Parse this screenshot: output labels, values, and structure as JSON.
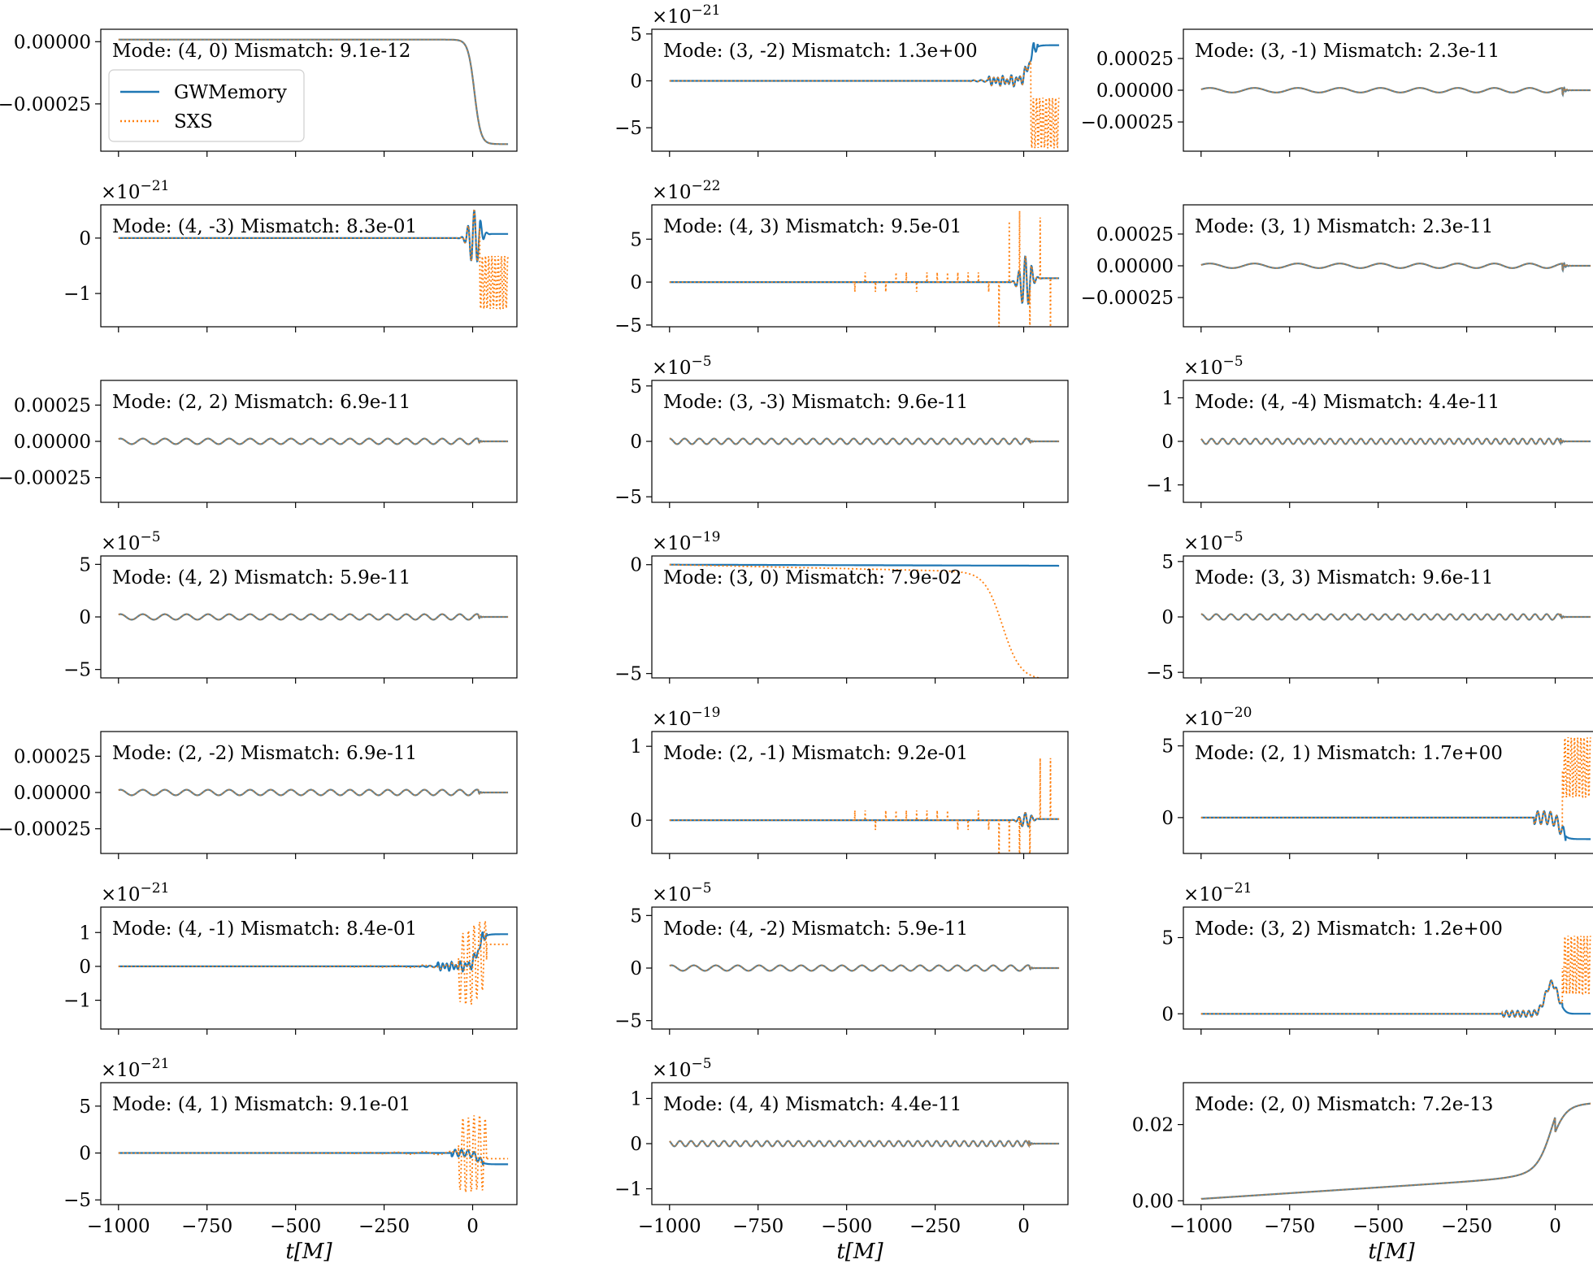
{
  "chart_data": {
    "type": "line",
    "layout": {
      "rows": 7,
      "cols": 3
    },
    "x_domain": [
      -1000,
      100
    ],
    "x_ticks": [
      -1000,
      -750,
      -500,
      -250,
      0
    ],
    "x_tick_labels": [
      "−1000",
      "−750",
      "−500",
      "−250",
      "0"
    ],
    "xlabel": "t[M]",
    "legend": {
      "placement": "upper-left",
      "panel": 0,
      "entries": [
        {
          "name": "GWMemory",
          "style": "solid",
          "color": "#1f77b4"
        },
        {
          "name": "SXS",
          "style": "dotted",
          "color": "#ff7f0e"
        }
      ]
    },
    "series_colors": {
      "GWMemory": "#1f77b4",
      "SXS": "#ff7f0e",
      "overlap": "#5f7f8f"
    },
    "panels": [
      {
        "label": "Mode: (4, 0)   Mismatch: 9.1e-12",
        "mult": "",
        "yrange": [
          -0.00044,
          5e-05
        ],
        "yticks": [
          0,
          -0.00025
        ],
        "yticklabels": [
          "0.00000",
          "−0.00025"
        ],
        "kind": "step_down",
        "amp": 0.00042,
        "sxs_diff": "none"
      },
      {
        "label": "Mode: (3, -2)   Mismatch: 1.3e+00",
        "mult": "×10−21",
        "yrange": [
          -7.5,
          5.5
        ],
        "yticks": [
          5,
          0,
          -5
        ],
        "yticklabels": [
          "5",
          "0",
          "−5"
        ],
        "kind": "memory_jump",
        "amp": 3.8,
        "sxs_diff": "noisy_block",
        "sxs_level": -4.5
      },
      {
        "label": "Mode: (3, -1)   Mismatch: 2.3e-11",
        "mult": "",
        "yrange": [
          -0.00048,
          0.00048
        ],
        "yticks": [
          0.00025,
          0,
          -0.00025
        ],
        "yticklabels": [
          "0.00025",
          "0.00000",
          "−0.00025"
        ],
        "kind": "slow_chirp",
        "amp": 0.00045,
        "sxs_diff": "none"
      },
      {
        "label": "Mode: (4, -3)   Mismatch: 8.3e-01",
        "mult": "×10−21",
        "yrange": [
          -1.6,
          0.6
        ],
        "yticks": [
          0,
          -1
        ],
        "yticklabels": [
          "0",
          "−1"
        ],
        "kind": "burst_small",
        "amp": 0.5,
        "sxs_diff": "noisy_block",
        "sxs_level": -0.8
      },
      {
        "label": "Mode: (4, 3)   Mismatch: 9.5e-01",
        "mult": "×10−22",
        "yrange": [
          -5.2,
          9
        ],
        "yticks": [
          5,
          0,
          -5
        ],
        "yticklabels": [
          "5",
          "0",
          "−5"
        ],
        "kind": "burst_small",
        "amp": 3,
        "sxs_diff": "spikes"
      },
      {
        "label": "Mode: (3, 1)   Mismatch: 2.3e-11",
        "mult": "",
        "yrange": [
          -0.00048,
          0.00048
        ],
        "yticks": [
          0.00025,
          0,
          -0.00025
        ],
        "yticklabels": [
          "0.00025",
          "0.00000",
          "−0.00025"
        ],
        "kind": "slow_chirp",
        "amp": 0.00045,
        "sxs_diff": "none"
      },
      {
        "label": "Mode: (2, 2)   Mismatch: 6.9e-11",
        "mult": "",
        "yrange": [
          -0.00042,
          0.00042
        ],
        "yticks": [
          0.00025,
          0,
          -0.00025
        ],
        "yticklabels": [
          "0.00025",
          "0.00000",
          "−0.00025"
        ],
        "kind": "chirp",
        "cycles": 22,
        "amp": 0.00038,
        "sxs_diff": "none"
      },
      {
        "label": "Mode: (3, -3)   Mismatch: 9.6e-11",
        "mult": "×10−5",
        "yrange": [
          -5.5,
          5.5
        ],
        "yticks": [
          5,
          0,
          -5
        ],
        "yticklabels": [
          "5",
          "0",
          "−5"
        ],
        "kind": "chirp",
        "cycles": 33,
        "amp": 5,
        "sxs_diff": "none"
      },
      {
        "label": "Mode: (4, -4)   Mismatch: 4.4e-11",
        "mult": "×10−5",
        "yrange": [
          -1.4,
          1.4
        ],
        "yticks": [
          1,
          0,
          -1
        ],
        "yticklabels": [
          "1",
          "0",
          "−1"
        ],
        "kind": "chirp",
        "cycles": 44,
        "amp": 1.25,
        "sxs_diff": "none"
      },
      {
        "label": "Mode: (4, 2)   Mismatch: 5.9e-11",
        "mult": "×10−5",
        "yrange": [
          -5.8,
          5.8
        ],
        "yticks": [
          5,
          0,
          -5
        ],
        "yticklabels": [
          "5",
          "0",
          "−5"
        ],
        "kind": "chirp",
        "cycles": 22,
        "amp": 5.2,
        "sxs_diff": "none"
      },
      {
        "label": "Mode: (3, 0)   Mismatch: 7.9e-02",
        "mult": "×10−19",
        "yrange": [
          -5.2,
          0.4
        ],
        "yticks": [
          0,
          -5
        ],
        "yticklabels": [
          "0",
          "−5"
        ],
        "kind": "flat_decline",
        "amp": 0.05,
        "sxs_diff": "decline",
        "sxs_level": -4.9
      },
      {
        "label": "Mode: (3, 3)   Mismatch: 9.6e-11",
        "mult": "×10−5",
        "yrange": [
          -5.5,
          5.5
        ],
        "yticks": [
          5,
          0,
          -5
        ],
        "yticklabels": [
          "5",
          "0",
          "−5"
        ],
        "kind": "chirp",
        "cycles": 33,
        "amp": 5,
        "sxs_diff": "none"
      },
      {
        "label": "Mode: (2, -2)   Mismatch: 6.9e-11",
        "mult": "",
        "yrange": [
          -0.00042,
          0.00042
        ],
        "yticks": [
          0.00025,
          0,
          -0.00025
        ],
        "yticklabels": [
          "0.00025",
          "0.00000",
          "−0.00025"
        ],
        "kind": "chirp",
        "cycles": 22,
        "amp": 0.00038,
        "sxs_diff": "none"
      },
      {
        "label": "Mode: (2, -1)   Mismatch: 9.2e-01",
        "mult": "×10−19",
        "yrange": [
          -0.45,
          1.2
        ],
        "yticks": [
          1,
          0
        ],
        "yticklabels": [
          "1",
          "0"
        ],
        "kind": "burst_small",
        "amp": 0.1,
        "sxs_diff": "spikes"
      },
      {
        "label": "Mode: (2, 1)   Mismatch: 1.7e+00",
        "mult": "×10−20",
        "yrange": [
          -2.5,
          6
        ],
        "yticks": [
          5,
          0
        ],
        "yticklabels": [
          "5",
          "0"
        ],
        "kind": "memory_drop",
        "amp": -1.5,
        "sxs_diff": "noisy_block",
        "sxs_level": 3.5
      },
      {
        "label": "Mode: (4, -1)   Mismatch: 8.4e-01",
        "mult": "×10−21",
        "yrange": [
          -1.85,
          1.75
        ],
        "yticks": [
          1,
          0,
          -1
        ],
        "yticklabels": [
          "1",
          "0",
          "−1"
        ],
        "kind": "memory_jump",
        "amp": 0.95,
        "sxs_diff": "oscillate_late",
        "sxs_level": 0.65
      },
      {
        "label": "Mode: (4, -2)   Mismatch: 5.9e-11",
        "mult": "×10−5",
        "yrange": [
          -5.8,
          5.8
        ],
        "yticks": [
          5,
          0,
          -5
        ],
        "yticklabels": [
          "5",
          "0",
          "−5"
        ],
        "kind": "chirp",
        "cycles": 22,
        "amp": 5.2,
        "sxs_diff": "none"
      },
      {
        "label": "Mode: (3, 2)   Mismatch: 1.2e+00",
        "mult": "×10−21",
        "yrange": [
          -1,
          7
        ],
        "yticks": [
          5,
          0
        ],
        "yticklabels": [
          "5",
          "0"
        ],
        "kind": "memory_bump",
        "amp": 2,
        "sxs_diff": "noisy_block",
        "sxs_level": 3.2
      },
      {
        "label": "Mode: (4, 1)   Mismatch: 9.1e-01",
        "mult": "×10−21",
        "yrange": [
          -5.5,
          7.5
        ],
        "yticks": [
          5,
          0,
          -5
        ],
        "yticklabels": [
          "5",
          "0",
          "−5"
        ],
        "kind": "memory_drop",
        "amp": -1.2,
        "sxs_diff": "oscillate_late",
        "sxs_level": -0.6
      },
      {
        "label": "Mode: (4, 4)   Mismatch: 4.4e-11",
        "mult": "×10−5",
        "yrange": [
          -1.35,
          1.35
        ],
        "yticks": [
          1,
          0,
          -1
        ],
        "yticklabels": [
          "1",
          "0",
          "−1"
        ],
        "kind": "chirp",
        "cycles": 44,
        "amp": 1.2,
        "sxs_diff": "none"
      },
      {
        "label": "Mode: (2, 0)   Mismatch: 7.2e-13",
        "mult": "",
        "yrange": [
          -0.001,
          0.031
        ],
        "yticks": [
          0.02,
          0
        ],
        "yticklabels": [
          "0.02",
          "0.00"
        ],
        "kind": "step_up",
        "amp": 0.0305,
        "sxs_diff": "none"
      }
    ]
  }
}
